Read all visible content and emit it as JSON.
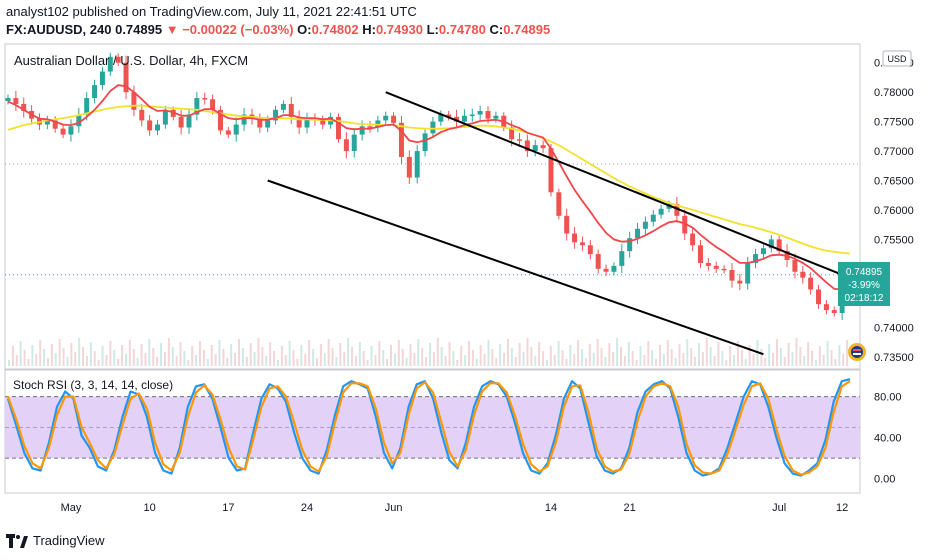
{
  "header": {
    "publisher": "analyst102 published on TradingView.com, July 11, 2021 22:41:51 UTC",
    "symbol": "FX:AUDUSD, 240",
    "last": "0.74895",
    "arrow": "▼",
    "change": "−0.00022 (−0.03%)",
    "open_label": "O:",
    "open": "0.74802",
    "high_label": "H:",
    "high": "0.74930",
    "low_label": "L:",
    "low": "0.74780",
    "close_label": "C:",
    "close": "0.74895"
  },
  "chart_data": [
    {
      "type": "candlestick",
      "title": "Australian Dollar / U.S. Dollar, 4h, FXCM",
      "currency_button": "USD",
      "y_ticks": [
        "0.78500",
        "0.78000",
        "0.77500",
        "0.77000",
        "0.76500",
        "0.76000",
        "0.75500",
        "0.74000",
        "0.73500"
      ],
      "y_tick_values": [
        0.785,
        0.78,
        0.775,
        0.77,
        0.765,
        0.76,
        0.755,
        0.74,
        0.735
      ],
      "ylim": [
        0.7335,
        0.7875
      ],
      "x_ticks": [
        "May",
        "10",
        "17",
        "24",
        "Jun",
        "14",
        "21",
        "Jul",
        "12"
      ],
      "price_tag": {
        "value": "0.74895",
        "change": "-3.99%",
        "countdown": "02:18:12"
      },
      "highlight_color": "#26a69a",
      "close_series": [
        0.779,
        0.778,
        0.7768,
        0.7755,
        0.7745,
        0.7752,
        0.7738,
        0.7728,
        0.7742,
        0.7762,
        0.779,
        0.7812,
        0.7835,
        0.786,
        0.785,
        0.78,
        0.777,
        0.7752,
        0.7735,
        0.7745,
        0.777,
        0.7758,
        0.774,
        0.7762,
        0.779,
        0.7788,
        0.777,
        0.7735,
        0.7728,
        0.7745,
        0.7762,
        0.7755,
        0.774,
        0.7752,
        0.777,
        0.778,
        0.7758,
        0.774,
        0.7755,
        0.7752,
        0.7745,
        0.7758,
        0.772,
        0.77,
        0.7728,
        0.7742,
        0.774,
        0.7752,
        0.776,
        0.7748,
        0.769,
        0.7655,
        0.77,
        0.773,
        0.775,
        0.7762,
        0.7758,
        0.775,
        0.776,
        0.7762,
        0.7768,
        0.7755,
        0.776,
        0.774,
        0.772,
        0.7718,
        0.77,
        0.771,
        0.7705,
        0.763,
        0.759,
        0.756,
        0.7545,
        0.754,
        0.7525,
        0.75,
        0.7495,
        0.7505,
        0.753,
        0.7552,
        0.7568,
        0.758,
        0.7592,
        0.7602,
        0.761,
        0.759,
        0.756,
        0.754,
        0.751,
        0.7505,
        0.75,
        0.7498,
        0.748,
        0.7475,
        0.751,
        0.7525,
        0.7535,
        0.755,
        0.753,
        0.7515,
        0.7495,
        0.7485,
        0.7465,
        0.744,
        0.743,
        0.7425,
        0.746,
        0.749
      ],
      "ema_fast_series": [
        0.7784,
        0.7778,
        0.777,
        0.7762,
        0.7755,
        0.7754,
        0.775,
        0.7745,
        0.7744,
        0.7748,
        0.7758,
        0.777,
        0.7785,
        0.7802,
        0.7812,
        0.781,
        0.78,
        0.7788,
        0.7775,
        0.7768,
        0.7769,
        0.7766,
        0.776,
        0.776,
        0.7766,
        0.7771,
        0.7771,
        0.7763,
        0.7756,
        0.7754,
        0.7756,
        0.7756,
        0.7753,
        0.7753,
        0.7756,
        0.7761,
        0.7761,
        0.7757,
        0.7756,
        0.7756,
        0.7754,
        0.7755,
        0.7748,
        0.7739,
        0.7737,
        0.7738,
        0.7738,
        0.7741,
        0.7744,
        0.7745,
        0.7734,
        0.7718,
        0.7715,
        0.7718,
        0.7724,
        0.7732,
        0.7737,
        0.774,
        0.7744,
        0.7747,
        0.7751,
        0.7752,
        0.7753,
        0.775,
        0.7744,
        0.7739,
        0.7731,
        0.7727,
        0.7723,
        0.7704,
        0.7681,
        0.7657,
        0.7634,
        0.7615,
        0.7597,
        0.7578,
        0.7561,
        0.755,
        0.7546,
        0.7547,
        0.7551,
        0.7557,
        0.7564,
        0.7572,
        0.7579,
        0.7581,
        0.7577,
        0.757,
        0.7558,
        0.7547,
        0.7537,
        0.7529,
        0.7519,
        0.751,
        0.751,
        0.7513,
        0.7517,
        0.7523,
        0.7524,
        0.7522,
        0.7517,
        0.751,
        0.7501,
        0.7489,
        0.7477,
        0.7466,
        0.7465,
        0.747
      ],
      "sma_slow_series": [
        0.7736,
        0.774,
        0.7744,
        0.7747,
        0.7749,
        0.7752,
        0.7754,
        0.7756,
        0.7758,
        0.7761,
        0.7764,
        0.7767,
        0.777,
        0.7773,
        0.7775,
        0.7776,
        0.7777,
        0.7777,
        0.7776,
        0.7775,
        0.7774,
        0.7773,
        0.7772,
        0.7771,
        0.777,
        0.7768,
        0.7766,
        0.7764,
        0.7762,
        0.776,
        0.7759,
        0.7758,
        0.7757,
        0.7756,
        0.7756,
        0.7756,
        0.7755,
        0.7754,
        0.7754,
        0.7753,
        0.7753,
        0.7752,
        0.7751,
        0.7749,
        0.7747,
        0.7746,
        0.7745,
        0.7745,
        0.7744,
        0.7744,
        0.7742,
        0.774,
        0.7739,
        0.7738,
        0.7738,
        0.7738,
        0.7739,
        0.774,
        0.7741,
        0.7742,
        0.7743,
        0.7743,
        0.7742,
        0.774,
        0.7738,
        0.7735,
        0.7731,
        0.7727,
        0.7722,
        0.7716,
        0.771,
        0.7702,
        0.7694,
        0.7686,
        0.7678,
        0.767,
        0.7662,
        0.7654,
        0.7647,
        0.764,
        0.7634,
        0.7628,
        0.7622,
        0.7617,
        0.7612,
        0.7608,
        0.7604,
        0.76,
        0.7596,
        0.7592,
        0.7588,
        0.7584,
        0.758,
        0.7576,
        0.7573,
        0.757,
        0.7566,
        0.7562,
        0.7558,
        0.7553,
        0.7548,
        0.7543,
        0.7538,
        0.7534,
        0.7531,
        0.7529,
        0.7527,
        0.7526
      ],
      "channel_upper": [
        [
          0.78,
          48
        ],
        [
          0.749,
          106
        ]
      ],
      "channel_lower": [
        [
          0.765,
          33
        ],
        [
          0.7355,
          96
        ]
      ],
      "dotted_level_1": 0.7678,
      "dotted_level_2": 0.749,
      "colors": {
        "ema_fast": "#f0464c",
        "sma_slow": "#f2e22c",
        "channel": "#000000",
        "up": "#26a69a",
        "down": "#ef5350"
      }
    },
    {
      "type": "line",
      "title": "Stoch RSI (3, 3, 14, 14, close)",
      "y_ticks": [
        "80.00",
        "40.00",
        "0.00"
      ],
      "y_tick_values": [
        80,
        40,
        0
      ],
      "ylim": [
        -12,
        103
      ],
      "band": [
        20,
        80
      ],
      "series": [
        {
          "color": "#2196f3",
          "values": [
            78,
            52,
            25,
            10,
            8,
            35,
            70,
            85,
            78,
            42,
            30,
            12,
            8,
            28,
            60,
            85,
            82,
            60,
            25,
            8,
            5,
            30,
            70,
            90,
            92,
            78,
            50,
            20,
            8,
            10,
            45,
            78,
            92,
            88,
            75,
            45,
            20,
            8,
            5,
            28,
            62,
            90,
            95,
            92,
            88,
            60,
            25,
            10,
            30,
            70,
            92,
            95,
            78,
            45,
            18,
            10,
            35,
            70,
            90,
            95,
            92,
            80,
            55,
            25,
            8,
            5,
            15,
            42,
            78,
            95,
            88,
            55,
            22,
            8,
            5,
            10,
            30,
            65,
            85,
            92,
            95,
            88,
            60,
            25,
            8,
            3,
            5,
            10,
            30,
            55,
            80,
            95,
            92,
            70,
            40,
            15,
            5,
            3,
            8,
            15,
            38,
            75,
            95,
            97
          ]
        },
        {
          "color": "#ff9800",
          "values": [
            80,
            58,
            32,
            15,
            10,
            30,
            62,
            80,
            80,
            50,
            35,
            18,
            10,
            24,
            52,
            78,
            83,
            68,
            35,
            14,
            8,
            25,
            60,
            84,
            91,
            82,
            58,
            30,
            12,
            9,
            38,
            70,
            88,
            90,
            80,
            55,
            28,
            12,
            7,
            22,
            55,
            84,
            93,
            93,
            90,
            68,
            35,
            15,
            25,
            62,
            88,
            94,
            84,
            55,
            26,
            12,
            28,
            62,
            85,
            93,
            93,
            84,
            62,
            34,
            14,
            7,
            12,
            35,
            70,
            90,
            91,
            65,
            30,
            12,
            7,
            9,
            24,
            56,
            80,
            90,
            93,
            90,
            70,
            34,
            13,
            6,
            5,
            8,
            24,
            48,
            72,
            90,
            93,
            78,
            48,
            22,
            8,
            4,
            6,
            12,
            30,
            65,
            90,
            95
          ]
        }
      ]
    }
  ]
}
